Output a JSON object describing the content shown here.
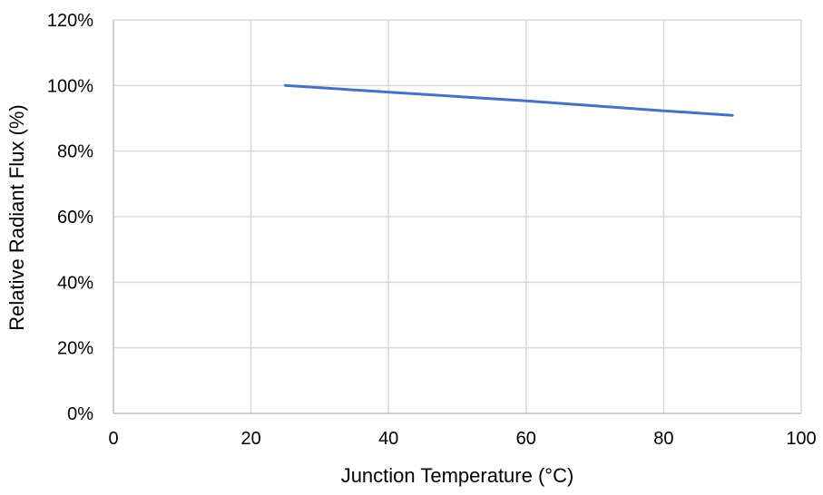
{
  "chart_data": {
    "type": "line",
    "title": "",
    "xlabel": "Junction Temperature (°C)",
    "ylabel": "Relative Radiant Flux (%)",
    "xlim": [
      0,
      100
    ],
    "ylim": [
      0,
      120
    ],
    "x_ticks": [
      0,
      20,
      40,
      60,
      80,
      100
    ],
    "x_tick_labels": [
      "0",
      "20",
      "40",
      "60",
      "80",
      "100"
    ],
    "y_ticks": [
      0,
      20,
      40,
      60,
      80,
      100,
      120
    ],
    "y_tick_labels": [
      "0%",
      "20%",
      "40%",
      "60%",
      "80%",
      "100%",
      "120%"
    ],
    "grid": true,
    "legend": "none",
    "series": [
      {
        "color": "#4472c4",
        "x": [
          25,
          40,
          60,
          80,
          90
        ],
        "y": [
          100,
          98,
          95.3,
          92.3,
          90.9
        ]
      }
    ]
  }
}
